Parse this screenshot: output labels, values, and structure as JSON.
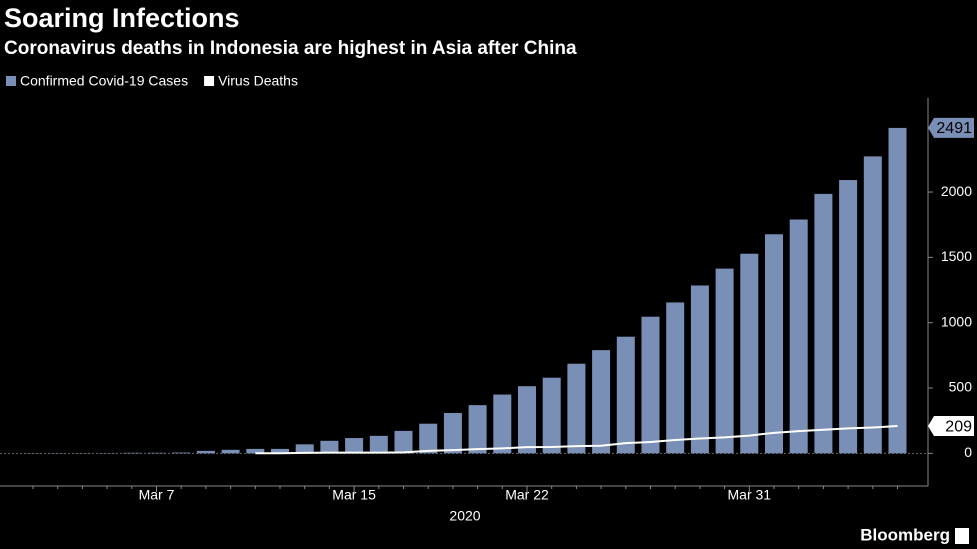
{
  "chart_data": {
    "type": "bar",
    "title": "Soaring Infections",
    "subtitle": "Coronavirus deaths in Indonesia are highest in Asia after China",
    "xlabel": "2020",
    "categories": [
      null,
      null,
      null,
      null,
      null,
      "Mar 7",
      null,
      null,
      null,
      null,
      null,
      null,
      null,
      "Mar 15",
      null,
      null,
      null,
      null,
      null,
      null,
      "Mar 22",
      null,
      null,
      null,
      null,
      null,
      null,
      null,
      null,
      "Mar 31",
      null,
      null,
      null,
      null,
      null,
      null
    ],
    "series": [
      {
        "name": "Confirmed Covid-19 Cases",
        "type": "bar",
        "color": "#7a8fb6",
        "values": [
          2,
          2,
          2,
          2,
          4,
          4,
          6,
          19,
          27,
          34,
          34,
          69,
          96,
          117,
          134,
          172,
          227,
          309,
          369,
          450,
          514,
          579,
          686,
          790,
          893,
          1046,
          1155,
          1285,
          1414,
          1528,
          1677,
          1790,
          1986,
          2092,
          2273,
          2491
        ]
      },
      {
        "name": "Virus Deaths",
        "type": "line",
        "color": "#ffffff",
        "values": [
          null,
          null,
          null,
          null,
          null,
          null,
          null,
          null,
          null,
          1,
          1,
          4,
          5,
          5,
          5,
          7,
          19,
          25,
          32,
          38,
          48,
          49,
          55,
          58,
          78,
          87,
          102,
          114,
          122,
          136,
          157,
          170,
          181,
          191,
          198,
          209
        ]
      }
    ],
    "ylim": [
      -250,
      2720
    ],
    "yticks": [
      0,
      500,
      1000,
      1500,
      2000
    ],
    "grid": false,
    "legend": "top-left",
    "source": "Bloomberg"
  }
}
